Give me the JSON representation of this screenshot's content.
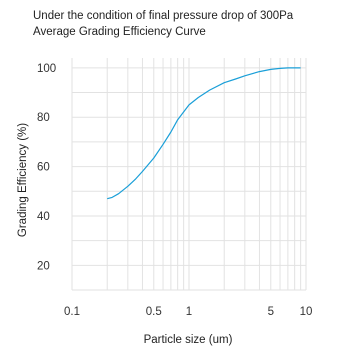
{
  "chart_data": {
    "type": "line",
    "title": "Under the condition of final pressure drop of 300Pa",
    "subtitle": "Average Grading Efficiency Curve",
    "xlabel": "Particle size (um)",
    "ylabel": "Grading Efficiency (%)",
    "x_scale": "log",
    "xlim": [
      0.1,
      10
    ],
    "ylim": [
      10,
      100
    ],
    "x_ticks": [
      "0.1",
      "0.5",
      "1",
      "5",
      "10"
    ],
    "y_ticks": [
      "20",
      "40",
      "60",
      "80",
      "100"
    ],
    "grid": true,
    "line_color": "#1a9fd8",
    "series": [
      {
        "x": [
          0.2,
          0.22,
          0.25,
          0.3,
          0.35,
          0.4,
          0.5,
          0.6,
          0.7,
          0.8,
          1.0,
          1.2,
          1.5,
          2.0,
          2.5,
          3,
          4,
          5,
          6,
          7,
          8,
          9
        ],
        "y": [
          47,
          47.5,
          49,
          52,
          55,
          58,
          63.5,
          69,
          74,
          79,
          85,
          88,
          91,
          94,
          95.5,
          96.8,
          98.5,
          99.4,
          99.8,
          100,
          100,
          100
        ]
      }
    ]
  }
}
